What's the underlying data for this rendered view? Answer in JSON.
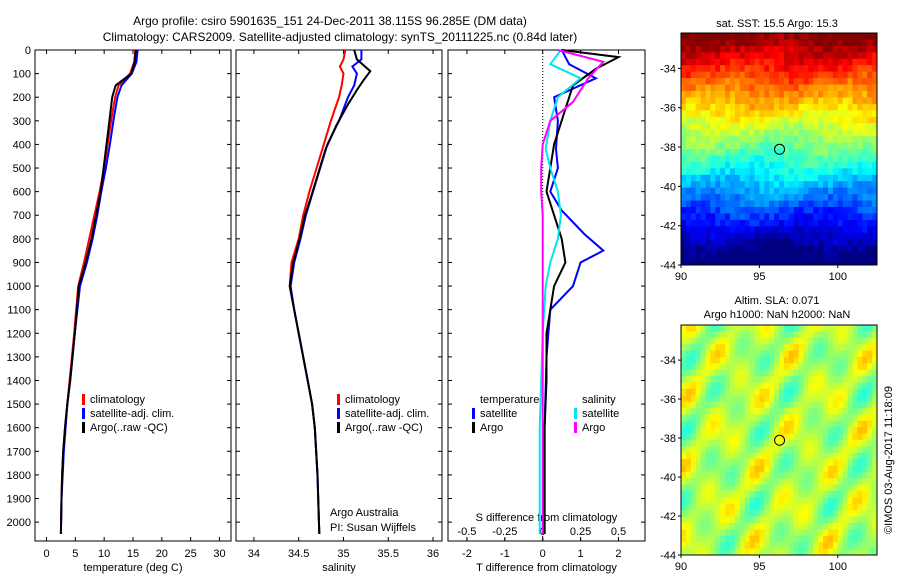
{
  "title_line1": "Argo profile: csiro 5901635_151 24-Dec-2011 38.115S 96.285E (DM data)",
  "title_line2": "Climatology: CARS2009. Satellite-adjusted climatology: synTS_20111225.nc (0.84d later)",
  "credit_line1": "Argo Australia",
  "credit_line2": "PI: Susan Wijffels",
  "side_label": "©IMOS 03-Aug-2017 11:18:09",
  "chart_data": [
    {
      "type": "line",
      "xlabel": "temperature (deg C)",
      "xlim": [
        -2,
        32
      ],
      "ylim": [
        2080,
        0
      ],
      "y_ticks": [
        0,
        100,
        200,
        300,
        400,
        500,
        600,
        700,
        800,
        900,
        1000,
        1100,
        1200,
        1300,
        1400,
        1500,
        1600,
        1700,
        1800,
        1900,
        2000
      ],
      "x_ticks": [
        0,
        5,
        10,
        15,
        20,
        25,
        30
      ],
      "legend": [
        "climatology",
        "satellite-adj. clim.",
        "Argo(..raw -QC)"
      ],
      "colors": {
        "climatology": "#ff0000",
        "satellite": "#0000ff",
        "argo": "#000000"
      },
      "series": [
        {
          "name": "climatology",
          "x": [
            15.4,
            15.2,
            14.5,
            12.5,
            11.9,
            11.2,
            10.6,
            10.0,
            9.2,
            8.3,
            7.4,
            6.5,
            5.5,
            4.8,
            4.0,
            3.6,
            3.2,
            2.9,
            2.7,
            2.6,
            2.5
          ],
          "y": [
            0,
            50,
            100,
            150,
            200,
            300,
            400,
            500,
            600,
            700,
            800,
            900,
            1000,
            1200,
            1400,
            1500,
            1600,
            1700,
            1800,
            1900,
            2050
          ]
        },
        {
          "name": "satellite-adj. clim.",
          "x": [
            15.8,
            15.6,
            14.8,
            13.0,
            12.3,
            11.6,
            11.0,
            10.3,
            9.5,
            8.8,
            8.0,
            7.0,
            5.8,
            4.9,
            4.1,
            3.6,
            3.3,
            3.0,
            2.8,
            2.6,
            2.5
          ],
          "y": [
            0,
            50,
            100,
            150,
            200,
            300,
            400,
            500,
            600,
            700,
            800,
            900,
            1000,
            1200,
            1400,
            1500,
            1600,
            1700,
            1800,
            1900,
            2050
          ]
        },
        {
          "name": "Argo(..raw -QC)",
          "x": [
            15.5,
            15.3,
            14.7,
            12.0,
            11.4,
            10.9,
            10.4,
            9.9,
            9.4,
            8.6,
            7.8,
            6.8,
            5.6,
            4.9,
            4.1,
            3.6,
            3.2,
            2.9,
            2.7,
            2.6,
            2.5
          ],
          "y": [
            0,
            50,
            100,
            150,
            200,
            300,
            400,
            500,
            600,
            700,
            800,
            900,
            1000,
            1200,
            1400,
            1500,
            1600,
            1700,
            1800,
            1900,
            2050
          ]
        }
      ]
    },
    {
      "type": "line",
      "xlabel": "salinity",
      "xlim": [
        33.8,
        36.1
      ],
      "ylim": [
        2080,
        0
      ],
      "x_ticks": [
        34,
        34.5,
        35,
        35.5,
        36
      ],
      "x_tick_labels": [
        "34",
        "34.5",
        "35",
        "35.5",
        "36"
      ],
      "legend": [
        "climatology",
        "satellite-adj. clim.",
        "Argo(..raw -QC)"
      ],
      "series": [
        {
          "name": "climatology",
          "x": [
            35.02,
            35.0,
            34.96,
            35.0,
            34.98,
            34.95,
            34.86,
            34.78,
            34.7,
            34.62,
            34.55,
            34.5,
            34.42,
            34.4,
            34.45,
            34.5,
            34.55,
            34.6,
            34.65,
            34.68,
            34.71,
            34.73
          ],
          "y": [
            0,
            40,
            70,
            100,
            150,
            200,
            300,
            400,
            500,
            600,
            700,
            800,
            900,
            1000,
            1100,
            1200,
            1300,
            1400,
            1500,
            1600,
            1800,
            2050
          ]
        },
        {
          "name": "satellite-adj. clim.",
          "x": [
            35.2,
            35.2,
            35.1,
            35.15,
            35.12,
            35.05,
            34.95,
            34.82,
            34.74,
            34.66,
            34.58,
            34.52,
            34.45,
            34.41,
            34.45,
            34.5,
            34.55,
            34.6,
            34.65,
            34.68,
            34.71,
            34.73
          ],
          "y": [
            0,
            40,
            70,
            100,
            150,
            200,
            300,
            400,
            500,
            600,
            700,
            800,
            900,
            1000,
            1100,
            1200,
            1300,
            1400,
            1500,
            1600,
            1800,
            2050
          ]
        },
        {
          "name": "Argo(..raw -QC)",
          "x": [
            35.12,
            35.15,
            35.3,
            35.22,
            35.15,
            35.05,
            34.92,
            34.8,
            34.72,
            34.64,
            34.57,
            34.51,
            34.44,
            34.4,
            34.45,
            34.5,
            34.55,
            34.6,
            34.65,
            34.68,
            34.71,
            34.73
          ],
          "y": [
            0,
            40,
            90,
            130,
            170,
            230,
            320,
            420,
            520,
            620,
            700,
            800,
            900,
            1000,
            1100,
            1200,
            1300,
            1400,
            1500,
            1600,
            1800,
            2050
          ]
        }
      ]
    },
    {
      "type": "line",
      "xlabel": "T difference from climatology",
      "xlabel_top": "S difference from climatology",
      "xlim": [
        -2.5,
        2.7
      ],
      "ylim": [
        2080,
        0
      ],
      "x_ticks": [
        -2,
        -1,
        0,
        1,
        2
      ],
      "x_top_ticks": [
        -0.5,
        -0.25,
        0,
        0.25,
        0.5
      ],
      "x_top_tick_labels": [
        "-0.5",
        "-0.25",
        "0",
        "0.25",
        "0.5"
      ],
      "legend_temperature_title": "temperature",
      "legend_salinity_title": "salinity",
      "legend_temperature": [
        "satellite",
        "Argo"
      ],
      "legend_salinity": [
        "satellite",
        "Argo"
      ],
      "colors": {
        "temp_satellite": "#0000ff",
        "temp_argo": "#000000",
        "sal_satellite": "#00e5ee",
        "sal_argo": "#ff00ff"
      },
      "series": [
        {
          "name": "temperature satellite",
          "x": [
            0.5,
            0.7,
            1.4,
            0.3,
            0.4,
            0.35,
            0.4,
            0.2,
            0.5,
            1.1,
            1.6,
            1.0,
            0.8,
            0.2,
            0.1,
            0.05,
            0.05,
            0.05
          ],
          "y": [
            0,
            60,
            120,
            200,
            300,
            420,
            500,
            600,
            680,
            780,
            850,
            900,
            1000,
            1100,
            1300,
            1600,
            1800,
            2050
          ]
        },
        {
          "name": "temperature Argo",
          "x": [
            0.5,
            2.0,
            1.4,
            0.8,
            0.6,
            0.3,
            0.2,
            0.1,
            0.3,
            0.5,
            0.6,
            0.3,
            0.2,
            0.1,
            0.1,
            0.05,
            0.05,
            0.05
          ],
          "y": [
            0,
            30,
            80,
            150,
            250,
            400,
            500,
            600,
            700,
            800,
            900,
            1000,
            1100,
            1200,
            1400,
            1600,
            1800,
            2050
          ]
        },
        {
          "name": "salinity satellite",
          "x": [
            0.12,
            0.05,
            0.25,
            0.1,
            0.05,
            0.02,
            0.05,
            0.1,
            0.12,
            0.1,
            0.05,
            0.02,
            0.01,
            0.0,
            -0.01,
            -0.02,
            -0.02,
            -0.02
          ],
          "y": [
            0,
            60,
            120,
            200,
            300,
            420,
            500,
            600,
            700,
            800,
            900,
            1000,
            1100,
            1200,
            1400,
            1600,
            1800,
            2050
          ]
        },
        {
          "name": "salinity Argo",
          "x": [
            0.1,
            0.4,
            0.3,
            0.2,
            0.05,
            0.0,
            -0.01,
            -0.01,
            0.0,
            0.0,
            0.0,
            0.0,
            0.0,
            0.0,
            0.0,
            0.0,
            0.0,
            0.0
          ],
          "y": [
            0,
            50,
            120,
            220,
            300,
            400,
            500,
            600,
            700,
            800,
            900,
            1000,
            1100,
            1200,
            1400,
            1600,
            1800,
            2050
          ]
        }
      ]
    },
    {
      "type": "heatmap",
      "title": "sat. SST: 15.5  Argo: 15.3",
      "x_ticks": [
        90,
        95,
        100
      ],
      "y_ticks": [
        -34,
        -36,
        -38,
        -40,
        -42,
        -44
      ],
      "xlim": [
        90,
        102.5
      ],
      "ylim": [
        -44,
        -32.2
      ],
      "marker": {
        "lon": 96.285,
        "lat": -38.115
      }
    },
    {
      "type": "heatmap",
      "title": "Altim. SLA: 0.071",
      "subtitle": "Argo h1000: NaN h2000: NaN",
      "x_ticks": [
        90,
        95,
        100
      ],
      "y_ticks": [
        -34,
        -36,
        -38,
        -40,
        -42,
        -44
      ],
      "xlim": [
        90,
        102.5
      ],
      "ylim": [
        -44,
        -32.2
      ],
      "marker": {
        "lon": 96.285,
        "lat": -38.115
      }
    }
  ]
}
